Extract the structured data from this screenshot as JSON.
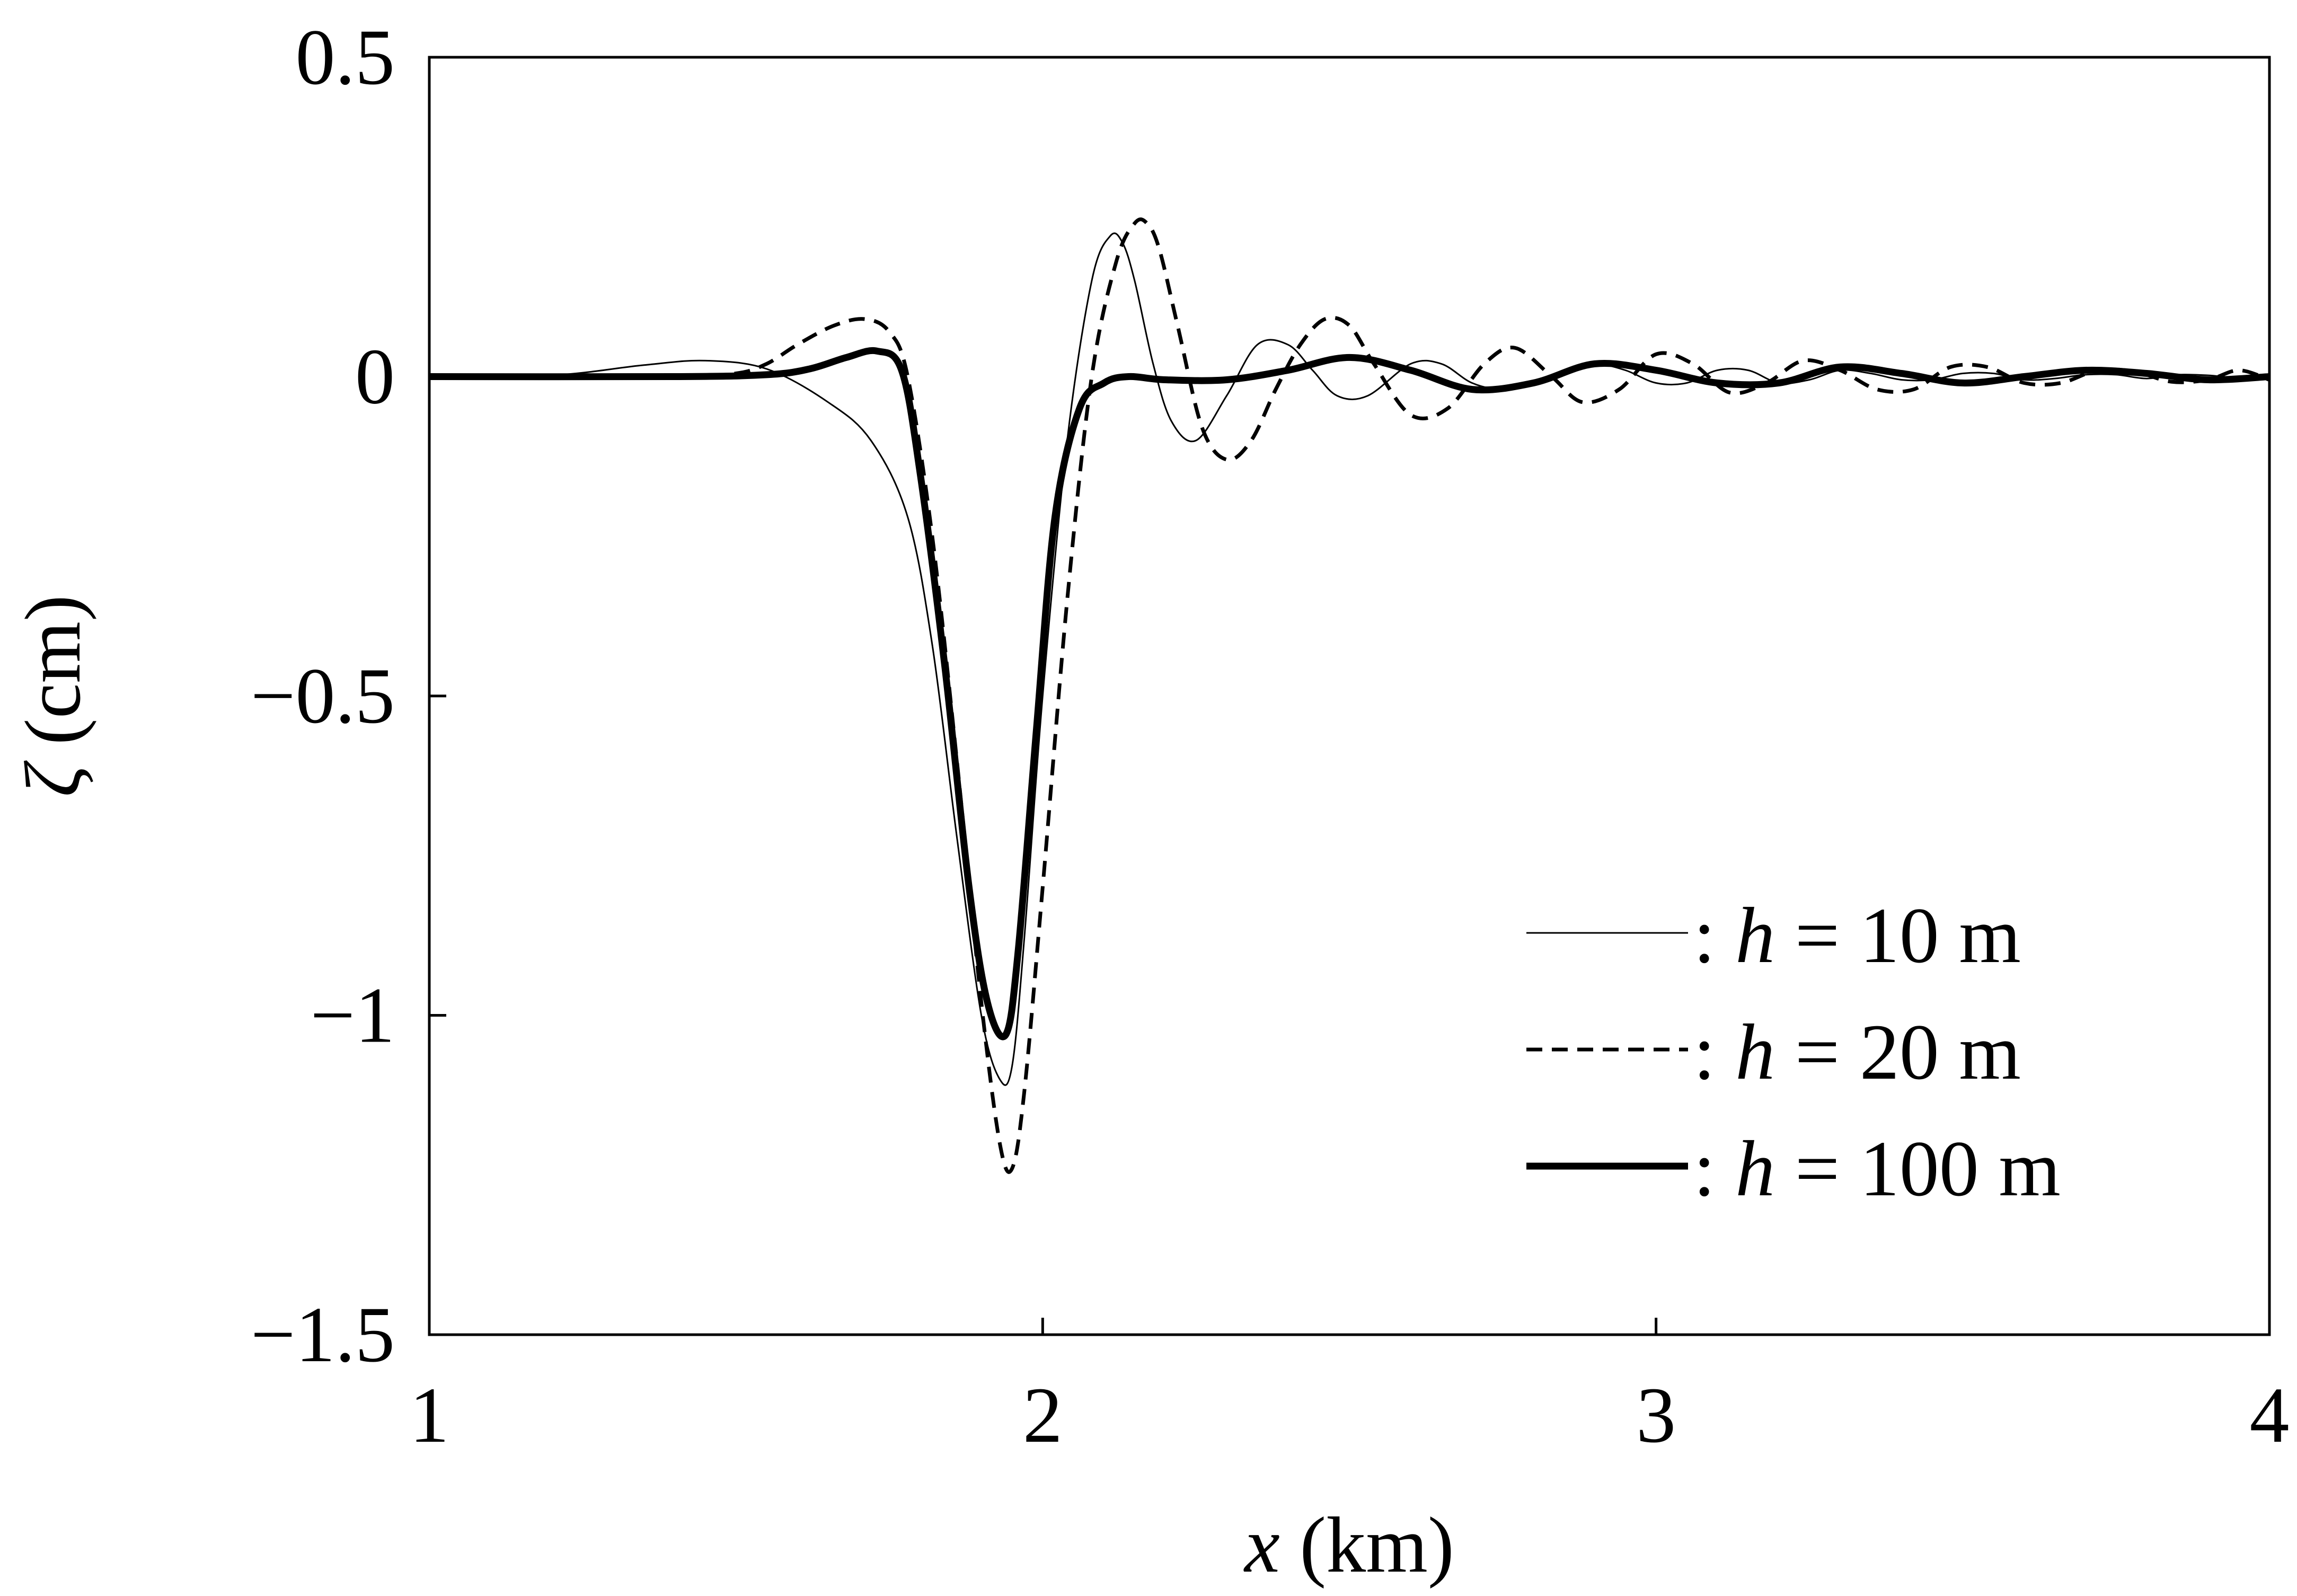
{
  "chart_data": {
    "type": "line",
    "xlabel": {
      "var": "x",
      "unit": " (km)"
    },
    "ylabel": {
      "var": "ζ",
      "unit": " (cm)"
    },
    "xlim": [
      1,
      4
    ],
    "ylim": [
      -1.5,
      0.5
    ],
    "xticks": [
      1,
      2,
      3,
      4
    ],
    "xtick_labels": [
      "1",
      "2",
      "3",
      "4"
    ],
    "yticks": [
      0.5,
      0,
      -0.5,
      -1,
      -1.5
    ],
    "ytick_labels": [
      "0.5",
      "0",
      "−0.5",
      "−1",
      "−1.5"
    ],
    "grid": false,
    "legend_position": "lower-right",
    "series": [
      {
        "name": ": h = 10 m",
        "name_parts": [
          ": ",
          "h",
          " = 10 m"
        ],
        "style": "thin-solid",
        "x": [
          1.0,
          1.2,
          1.35,
          1.45,
          1.55,
          1.65,
          1.72,
          1.78,
          1.82,
          1.86,
          1.9,
          1.93,
          1.95,
          1.97,
          2.0,
          2.04,
          2.08,
          2.11,
          2.13,
          2.15,
          2.18,
          2.21,
          2.25,
          2.3,
          2.35,
          2.4,
          2.44,
          2.48,
          2.53,
          2.6,
          2.65,
          2.7,
          2.75,
          2.8,
          2.85,
          2.9,
          2.95,
          3.0,
          3.05,
          3.1,
          3.15,
          3.2,
          3.25,
          3.3,
          3.35,
          3.4,
          3.45,
          3.5,
          3.55,
          3.6,
          3.65,
          3.7,
          3.75,
          3.8,
          3.85,
          3.9,
          3.95,
          4.0
        ],
        "y": [
          0.0,
          0.002,
          0.018,
          0.025,
          0.012,
          -0.04,
          -0.1,
          -0.22,
          -0.42,
          -0.72,
          -1.0,
          -1.1,
          -1.08,
          -0.88,
          -0.5,
          -0.1,
          0.15,
          0.22,
          0.21,
          0.15,
          0.02,
          -0.07,
          -0.1,
          -0.03,
          0.05,
          0.05,
          0.01,
          -0.03,
          -0.03,
          0.02,
          0.02,
          -0.01,
          -0.02,
          -0.01,
          0.01,
          0.02,
          0.01,
          -0.01,
          -0.01,
          0.01,
          0.01,
          -0.01,
          -0.005,
          0.01,
          0.005,
          -0.005,
          -0.005,
          0.005,
          0.005,
          -0.005,
          -0.003,
          0.003,
          0.003,
          -0.003,
          0.003,
          0.002,
          -0.002,
          0.0
        ]
      },
      {
        "name": ": h = 20 m",
        "name_parts": [
          ": ",
          "h",
          " = 20 m"
        ],
        "style": "dashed",
        "x": [
          1.0,
          1.4,
          1.5,
          1.55,
          1.6,
          1.66,
          1.71,
          1.75,
          1.78,
          1.82,
          1.86,
          1.9,
          1.93,
          1.95,
          1.97,
          2.0,
          2.04,
          2.08,
          2.12,
          2.15,
          2.17,
          2.19,
          2.22,
          2.26,
          2.3,
          2.34,
          2.38,
          2.42,
          2.46,
          2.5,
          2.54,
          2.6,
          2.66,
          2.72,
          2.77,
          2.83,
          2.88,
          2.94,
          3.0,
          3.06,
          3.12,
          3.18,
          3.24,
          3.3,
          3.36,
          3.42,
          3.48,
          3.54,
          3.6,
          3.66,
          3.72,
          3.78,
          3.84,
          3.9,
          3.95,
          4.0
        ],
        "y": [
          0.0,
          0.0,
          0.005,
          0.02,
          0.05,
          0.08,
          0.09,
          0.07,
          0.0,
          -0.25,
          -0.6,
          -0.98,
          -1.2,
          -1.24,
          -1.12,
          -0.8,
          -0.35,
          0.0,
          0.18,
          0.24,
          0.24,
          0.2,
          0.08,
          -0.08,
          -0.13,
          -0.1,
          -0.02,
          0.05,
          0.09,
          0.08,
          0.02,
          -0.06,
          -0.05,
          0.02,
          0.045,
          0.0,
          -0.04,
          -0.02,
          0.035,
          0.02,
          -0.025,
          -0.01,
          0.025,
          0.01,
          -0.02,
          -0.02,
          0.015,
          0.015,
          -0.01,
          -0.01,
          0.01,
          0.008,
          -0.008,
          -0.005,
          0.01,
          -0.005
        ]
      },
      {
        "name": ": h = 100 m",
        "name_parts": [
          ": ",
          "h",
          " = 100 m"
        ],
        "style": "thick-solid",
        "x": [
          1.0,
          1.4,
          1.55,
          1.62,
          1.68,
          1.73,
          1.77,
          1.8,
          1.84,
          1.88,
          1.91,
          1.94,
          1.96,
          1.99,
          2.02,
          2.06,
          2.1,
          2.14,
          2.2,
          2.3,
          2.4,
          2.5,
          2.6,
          2.7,
          2.8,
          2.9,
          3.0,
          3.1,
          3.2,
          3.3,
          3.4,
          3.5,
          3.6,
          3.7,
          3.8,
          3.9,
          4.0
        ],
        "y": [
          0.0,
          0.0,
          0.003,
          0.012,
          0.03,
          0.04,
          0.01,
          -0.15,
          -0.45,
          -0.8,
          -0.98,
          -1.03,
          -0.9,
          -0.55,
          -0.22,
          -0.05,
          -0.01,
          0.0,
          -0.005,
          -0.005,
          0.01,
          0.03,
          0.01,
          -0.02,
          -0.01,
          0.02,
          0.01,
          -0.01,
          -0.01,
          0.015,
          0.005,
          -0.01,
          0.0,
          0.01,
          0.005,
          -0.005,
          0.0
        ]
      }
    ]
  }
}
